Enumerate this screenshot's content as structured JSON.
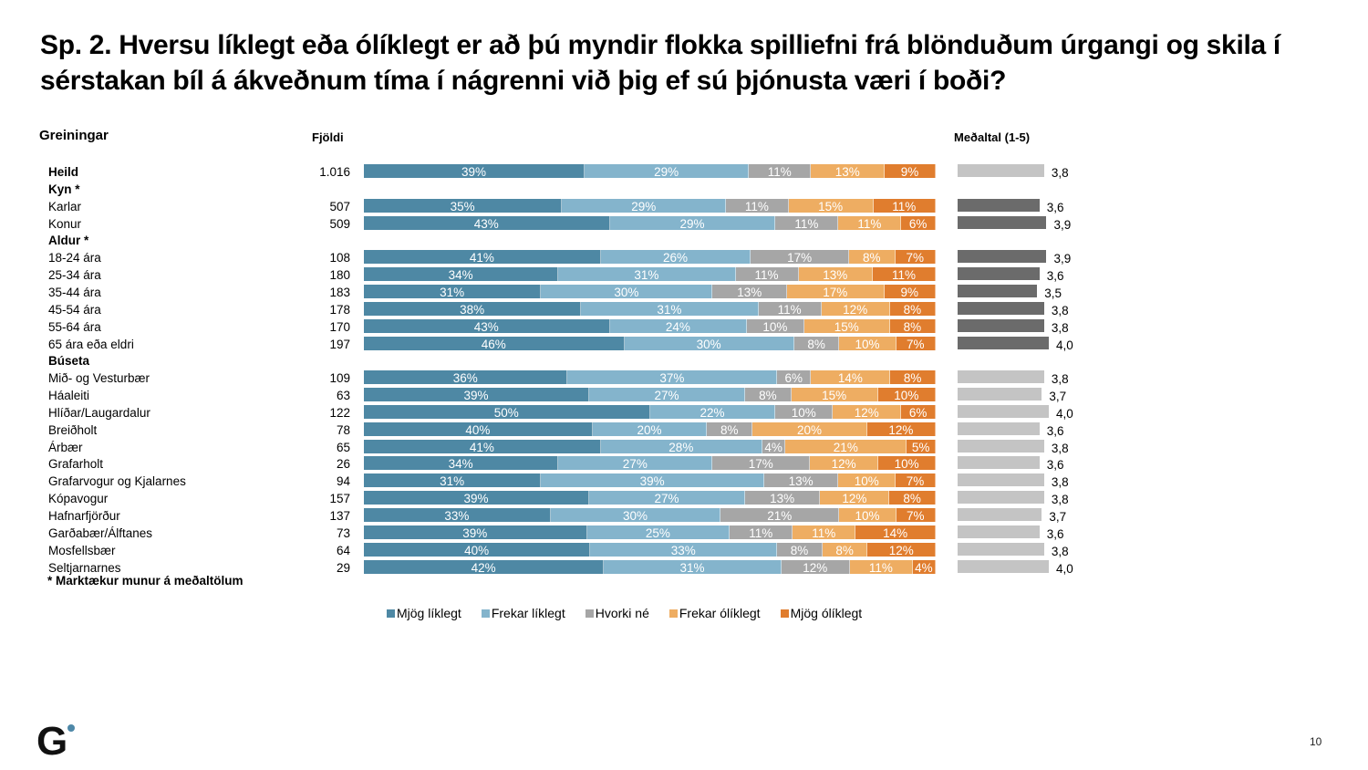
{
  "title": "Sp. 2. Hversu líklegt eða ólíklegt er að þú myndir flokka spilliefni frá blönduðum úrgangi og skila í sérstakan bíl á ákveðnum tíma í nágrenni við þig ef sú þjónusta væri í boði?",
  "headers": {
    "groups": "Greiningar",
    "count": "Fjöldi",
    "mean": "Meðaltal (1-5)"
  },
  "footnote": "* Marktækur munur á meðaltölum",
  "page_number": "10",
  "logo": {
    "letter": "G",
    "accent_color": "#4e88a8"
  },
  "colors": {
    "mjog_liklegt": "#4e88a4",
    "frekar_liklegt": "#84b4cc",
    "hvorki_ne": "#a6a6a6",
    "frekar_oliklegt": "#eead62",
    "mjog_oliklegt": "#e07d2e",
    "mean_dark": "#6b6b6b",
    "mean_light": "#c4c4c4"
  },
  "chart_data": {
    "type": "bar",
    "orientation": "horizontal-stacked-100",
    "title": "Sp. 2. Hversu líklegt eða ólíklegt er að þú myndir flokka spilliefni frá blönduðum úrgangi og skila í sérstakan bíl á ákveðnum tíma í nágrenni við þig ef sú þjónusta væri í boði?",
    "legend_position": "bottom",
    "series_names": [
      "Mjög líklegt",
      "Frekar líklegt",
      "Hvorki né",
      "Frekar ólíklegt",
      "Mjög ólíklegt"
    ],
    "mean_scale": [
      1,
      5
    ],
    "rows": [
      {
        "label": "Heild",
        "bold": true,
        "n": "1.016",
        "values": [
          39,
          29,
          11,
          13,
          9
        ],
        "mean": 3.8,
        "mean_label": "3,8",
        "mean_style": "light"
      },
      {
        "label": "Kyn *",
        "bold": true,
        "header": true
      },
      {
        "label": "Karlar",
        "n": "507",
        "values": [
          35,
          29,
          11,
          15,
          11
        ],
        "mean": 3.6,
        "mean_label": "3,6",
        "mean_style": "dark"
      },
      {
        "label": "Konur",
        "n": "509",
        "values": [
          43,
          29,
          11,
          11,
          6
        ],
        "mean": 3.9,
        "mean_label": "3,9",
        "mean_style": "dark"
      },
      {
        "label": "Aldur *",
        "bold": true,
        "header": true
      },
      {
        "label": "18-24 ára",
        "n": "108",
        "values": [
          41,
          26,
          17,
          8,
          7
        ],
        "mean": 3.9,
        "mean_label": "3,9",
        "mean_style": "dark"
      },
      {
        "label": "25-34 ára",
        "n": "180",
        "values": [
          34,
          31,
          11,
          13,
          11
        ],
        "mean": 3.6,
        "mean_label": "3,6",
        "mean_style": "dark"
      },
      {
        "label": "35-44 ára",
        "n": "183",
        "values": [
          31,
          30,
          13,
          17,
          9
        ],
        "mean": 3.5,
        "mean_label": "3,5",
        "mean_style": "dark"
      },
      {
        "label": "45-54 ára",
        "n": "178",
        "values": [
          38,
          31,
          11,
          12,
          8
        ],
        "mean": 3.8,
        "mean_label": "3,8",
        "mean_style": "dark"
      },
      {
        "label": "55-64 ára",
        "n": "170",
        "values": [
          43,
          24,
          10,
          15,
          8
        ],
        "mean": 3.8,
        "mean_label": "3,8",
        "mean_style": "dark"
      },
      {
        "label": "65 ára eða eldri",
        "n": "197",
        "values": [
          46,
          30,
          8,
          10,
          7
        ],
        "mean": 4.0,
        "mean_label": "4,0",
        "mean_style": "dark"
      },
      {
        "label": "Búseta",
        "bold": true,
        "header": true
      },
      {
        "label": "Mið- og Vesturbær",
        "n": "109",
        "values": [
          36,
          37,
          6,
          14,
          8
        ],
        "mean": 3.8,
        "mean_label": "3,8",
        "mean_style": "light"
      },
      {
        "label": "Háaleiti",
        "n": "63",
        "values": [
          39,
          27,
          8,
          15,
          10
        ],
        "mean": 3.7,
        "mean_label": "3,7",
        "mean_style": "light"
      },
      {
        "label": "Hlíðar/Laugardalur",
        "n": "122",
        "values": [
          50,
          22,
          10,
          12,
          6
        ],
        "mean": 4.0,
        "mean_label": "4,0",
        "mean_style": "light"
      },
      {
        "label": "Breiðholt",
        "n": "78",
        "values": [
          40,
          20,
          8,
          20,
          12
        ],
        "mean": 3.6,
        "mean_label": "3,6",
        "mean_style": "light"
      },
      {
        "label": "Árbær",
        "n": "65",
        "values": [
          41,
          28,
          4,
          21,
          5
        ],
        "mean": 3.8,
        "mean_label": "3,8",
        "mean_style": "light"
      },
      {
        "label": "Grafarholt",
        "n": "26",
        "values": [
          34,
          27,
          17,
          12,
          10
        ],
        "mean": 3.6,
        "mean_label": "3,6",
        "mean_style": "light"
      },
      {
        "label": "Grafarvogur og Kjalarnes",
        "n": "94",
        "values": [
          31,
          39,
          13,
          10,
          7
        ],
        "mean": 3.8,
        "mean_label": "3,8",
        "mean_style": "light"
      },
      {
        "label": "Kópavogur",
        "n": "157",
        "values": [
          39,
          27,
          13,
          12,
          8
        ],
        "mean": 3.8,
        "mean_label": "3,8",
        "mean_style": "light"
      },
      {
        "label": "Hafnarfjörður",
        "n": "137",
        "values": [
          33,
          30,
          21,
          10,
          7
        ],
        "mean": 3.7,
        "mean_label": "3,7",
        "mean_style": "light"
      },
      {
        "label": "Garðabær/Álftanes",
        "n": "73",
        "values": [
          39,
          25,
          11,
          11,
          14
        ],
        "mean": 3.6,
        "mean_label": "3,6",
        "mean_style": "light"
      },
      {
        "label": "Mosfellsbær",
        "n": "64",
        "values": [
          40,
          33,
          8,
          8,
          12
        ],
        "mean": 3.8,
        "mean_label": "3,8",
        "mean_style": "light"
      },
      {
        "label": "Seltjarnarnes",
        "n": "29",
        "values": [
          42,
          31,
          12,
          11,
          4
        ],
        "mean": 4.0,
        "mean_label": "4,0",
        "mean_style": "light"
      }
    ]
  }
}
